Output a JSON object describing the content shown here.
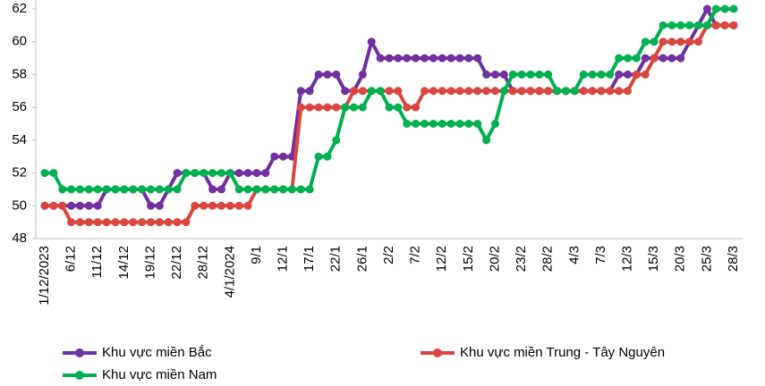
{
  "chart_data": {
    "type": "line",
    "categories": [
      "1/12/2023",
      null,
      null,
      "6/12",
      null,
      null,
      "11/12",
      null,
      null,
      "14/12",
      null,
      null,
      "19/12",
      null,
      null,
      "22/12",
      null,
      null,
      "28/12",
      null,
      null,
      "4/1/2024",
      null,
      null,
      "9/1",
      null,
      null,
      "12/1",
      null,
      null,
      "17/1",
      null,
      null,
      "22/1",
      null,
      null,
      "26/1",
      null,
      null,
      "2/2",
      null,
      null,
      "7/2",
      null,
      null,
      "12/2",
      null,
      null,
      "15/2",
      null,
      null,
      "20/2",
      null,
      null,
      "23/2",
      null,
      null,
      "28/2",
      null,
      null,
      "4/3",
      null,
      null,
      "7/3",
      null,
      null,
      "12/3",
      null,
      null,
      "15/3",
      null,
      null,
      "20/3",
      null,
      null,
      "25/3",
      null,
      null,
      "28/3"
    ],
    "series": [
      {
        "name": "Khu vực miền Bắc",
        "color": "#7030a0",
        "values": [
          50,
          50,
          50,
          50,
          50,
          50,
          50,
          51,
          51,
          51,
          51,
          51,
          50,
          50,
          51,
          52,
          52,
          52,
          52,
          51,
          51,
          52,
          52,
          52,
          52,
          52,
          53,
          53,
          53,
          57,
          57,
          58,
          58,
          58,
          57,
          57,
          58,
          60,
          59,
          59,
          59,
          59,
          59,
          59,
          59,
          59,
          59,
          59,
          59,
          59,
          58,
          58,
          58,
          57,
          57,
          57,
          57,
          57,
          57,
          57,
          57,
          57,
          57,
          57,
          57,
          58,
          58,
          58,
          59,
          59,
          59,
          59,
          59,
          60,
          61,
          62,
          61,
          61,
          61
        ]
      },
      {
        "name": "Khu vực miền Trung - Tây Nguyên",
        "color": "#d9463f",
        "values": [
          50,
          50,
          50,
          49,
          49,
          49,
          49,
          49,
          49,
          49,
          49,
          49,
          49,
          49,
          49,
          49,
          49,
          50,
          50,
          50,
          50,
          50,
          50,
          50,
          51,
          51,
          51,
          51,
          51,
          56,
          56,
          56,
          56,
          56,
          56,
          57,
          57,
          57,
          57,
          57,
          57,
          56,
          56,
          57,
          57,
          57,
          57,
          57,
          57,
          57,
          57,
          57,
          57,
          57,
          57,
          57,
          57,
          57,
          57,
          57,
          57,
          57,
          57,
          57,
          57,
          57,
          57,
          58,
          58,
          59,
          60,
          60,
          60,
          60,
          60,
          61,
          61,
          61,
          61
        ]
      },
      {
        "name": "Khu vực miền Nam",
        "color": "#00b050",
        "values": [
          52,
          52,
          51,
          51,
          51,
          51,
          51,
          51,
          51,
          51,
          51,
          51,
          51,
          51,
          51,
          51,
          52,
          52,
          52,
          52,
          52,
          52,
          51,
          51,
          51,
          51,
          51,
          51,
          51,
          51,
          51,
          53,
          53,
          54,
          56,
          56,
          56,
          57,
          57,
          56,
          56,
          55,
          55,
          55,
          55,
          55,
          55,
          55,
          55,
          55,
          54,
          55,
          57,
          58,
          58,
          58,
          58,
          58,
          57,
          57,
          57,
          58,
          58,
          58,
          58,
          59,
          59,
          59,
          60,
          60,
          61,
          61,
          61,
          61,
          61,
          61,
          62,
          62,
          62
        ]
      }
    ],
    "ylim": [
      48,
      62
    ],
    "yticks": [
      48,
      50,
      52,
      54,
      56,
      58,
      60,
      62
    ],
    "grid": false,
    "legend": "bottom"
  }
}
